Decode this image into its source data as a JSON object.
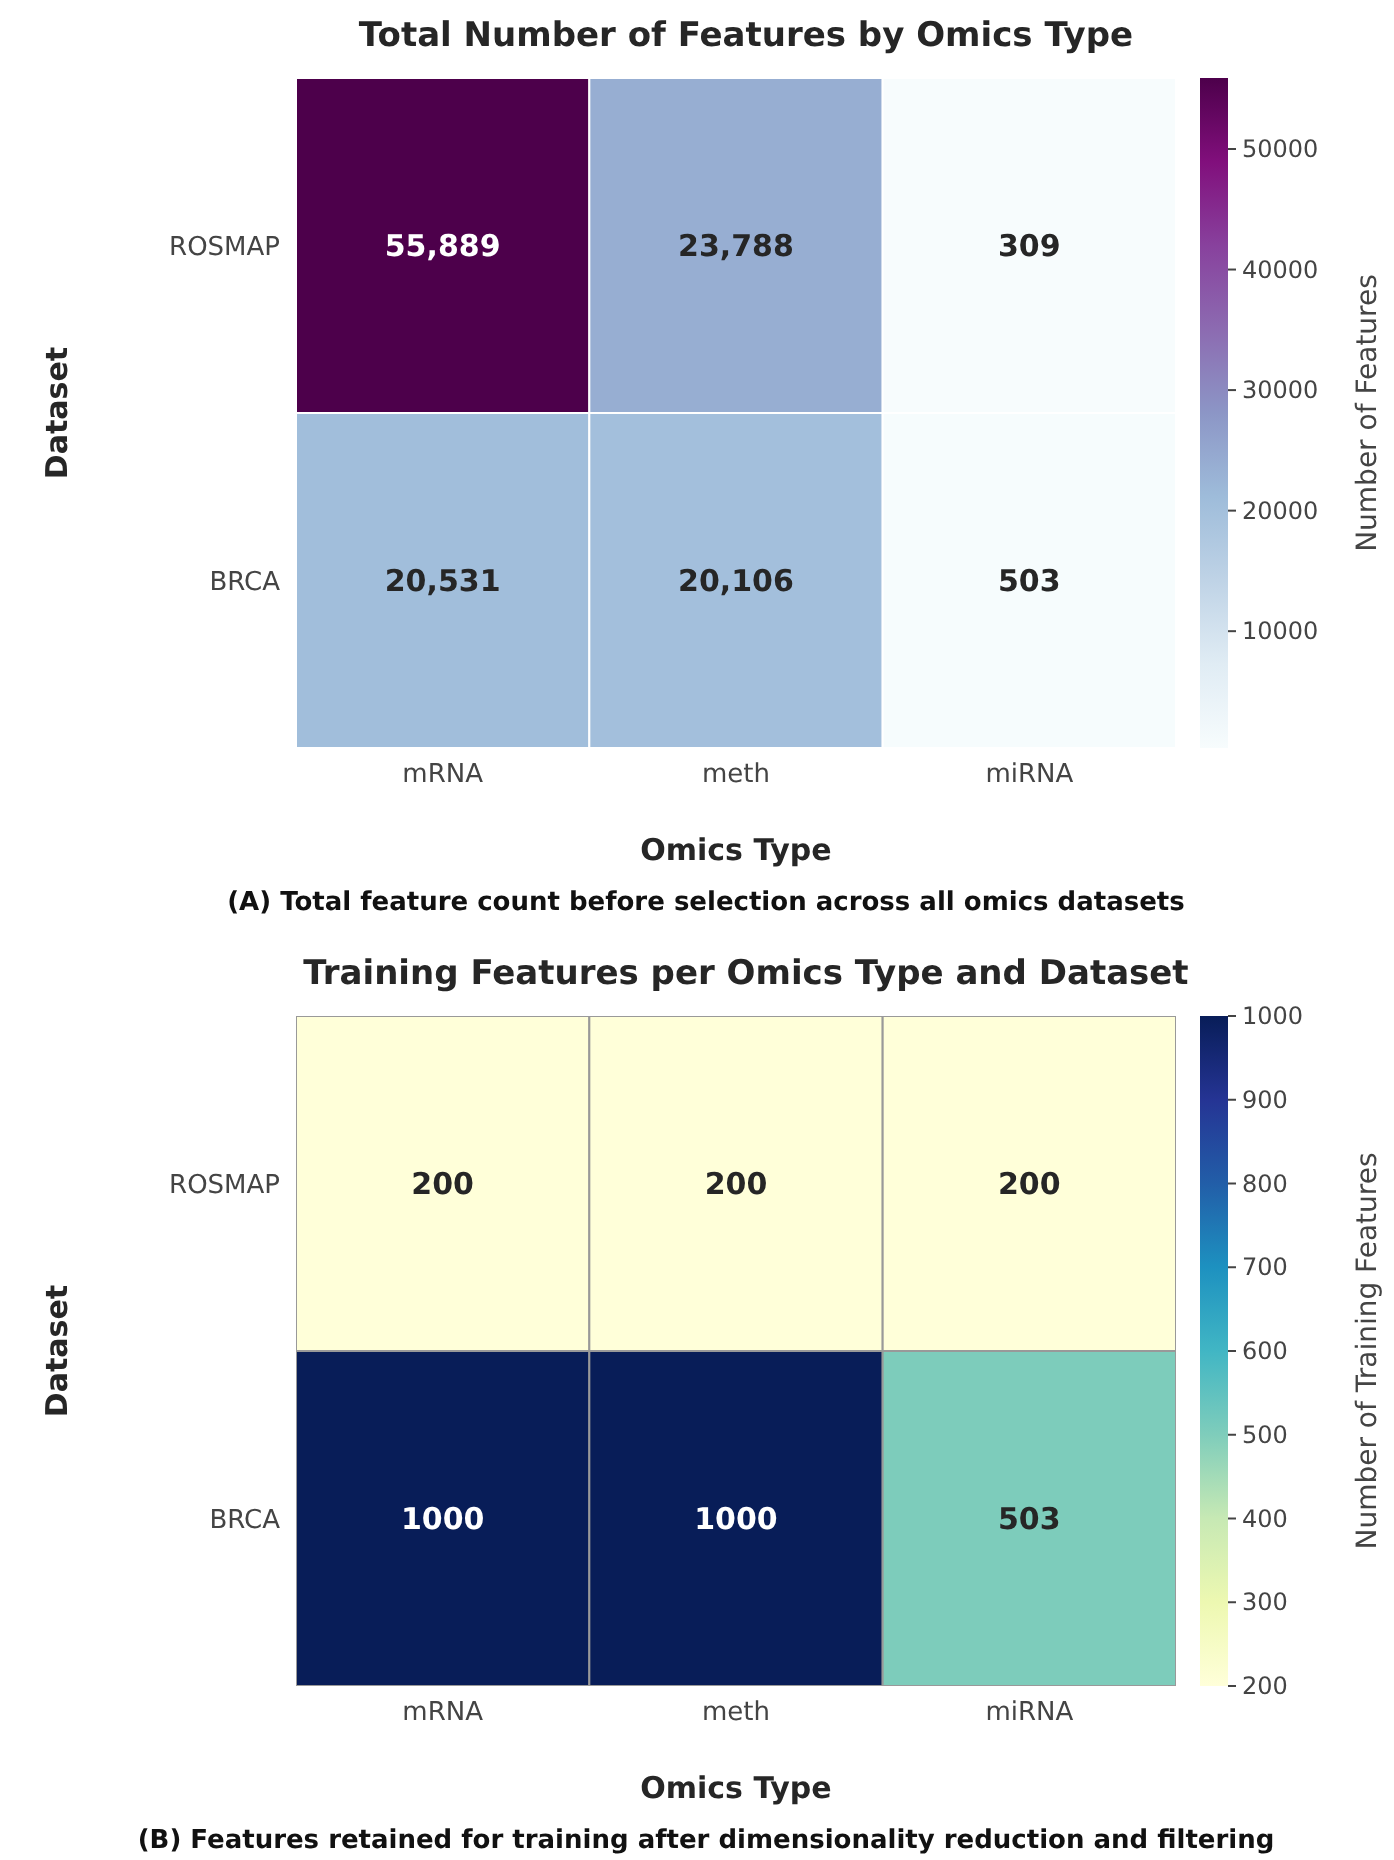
{
  "chart_data": [
    {
      "type": "heatmap",
      "title": "Total Number of Features by Omics Type",
      "xlabel": "Omics Type",
      "ylabel": "Dataset",
      "clabel": "Number of Features",
      "categories": [
        "mRNA",
        "meth",
        "miRNA"
      ],
      "y_categories": [
        "ROSMAP",
        "BRCA"
      ],
      "cells": [
        [
          55889,
          23788,
          309
        ],
        [
          20531,
          20106,
          503
        ]
      ],
      "cell_labels": [
        [
          "55,889",
          "23,788",
          "309"
        ],
        [
          "20,531",
          "20,106",
          "503"
        ]
      ],
      "clim": [
        309,
        55889
      ],
      "cticks": [
        10000,
        20000,
        30000,
        40000,
        50000
      ],
      "annotations": [
        "(A) Total feature count before selection across all omics datasets"
      ]
    },
    {
      "type": "heatmap",
      "title": "Training Features per Omics Type and Dataset",
      "xlabel": "Omics Type",
      "ylabel": "Dataset",
      "clabel": "Number of Training Features",
      "categories": [
        "mRNA",
        "meth",
        "miRNA"
      ],
      "y_categories": [
        "ROSMAP",
        "BRCA"
      ],
      "cells": [
        [
          200,
          200,
          200
        ],
        [
          1000,
          1000,
          503
        ]
      ],
      "data_labels": true,
      "clim": [
        200,
        1000
      ],
      "cticks": [
        200,
        300,
        400,
        500,
        600,
        700,
        800,
        900,
        1000
      ],
      "annotations": [
        "(B) Features retained for training after dimensionality reduction and filtering"
      ]
    }
  ]
}
